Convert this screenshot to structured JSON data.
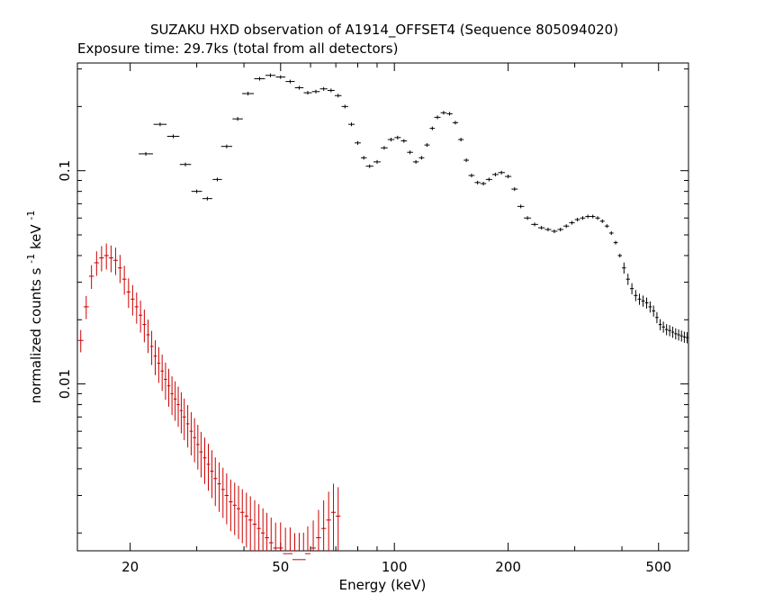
{
  "chart_data": {
    "type": "scatter",
    "title": "SUZAKU HXD observation of A1914_OFFSET4 (Sequence 805094020)",
    "subtitle": "Exposure time: 29.7ks (total from all detectors)",
    "xlabel": "Energy (keV)",
    "ylabel_main": "normalized counts s",
    "ylabel_sup1": "-1",
    "ylabel_mid": " keV",
    "ylabel_sup2": "-1",
    "xscale": "log",
    "yscale": "log",
    "xlim": [
      14.5,
      600
    ],
    "ylim": [
      0.00165,
      0.32
    ],
    "x_ticks": [
      {
        "value": 20,
        "label": "20"
      },
      {
        "value": 50,
        "label": "50"
      },
      {
        "value": 100,
        "label": "100"
      },
      {
        "value": 200,
        "label": "200"
      },
      {
        "value": 500,
        "label": "500"
      }
    ],
    "y_ticks": [
      {
        "value": 0.01,
        "label": "0.01"
      },
      {
        "value": 0.1,
        "label": "0.1"
      }
    ],
    "series": [
      {
        "color": "#000000",
        "points": [
          [
            22.0,
            0.12
          ],
          [
            24.0,
            0.165
          ],
          [
            26.0,
            0.145
          ],
          [
            28.0,
            0.107
          ],
          [
            30.0,
            0.08
          ],
          [
            32.0,
            0.074
          ],
          [
            34.0,
            0.091
          ],
          [
            36.0,
            0.13
          ],
          [
            38.5,
            0.175
          ],
          [
            41.0,
            0.23
          ],
          [
            44.0,
            0.27
          ],
          [
            47.0,
            0.28
          ],
          [
            50.0,
            0.275
          ],
          [
            53.0,
            0.262
          ],
          [
            56.0,
            0.245
          ],
          [
            59.0,
            0.232
          ],
          [
            62.0,
            0.235
          ],
          [
            65.0,
            0.242
          ],
          [
            68.0,
            0.238
          ],
          [
            71.0,
            0.225
          ],
          [
            74.0,
            0.2
          ],
          [
            77.0,
            0.165
          ],
          [
            80.0,
            0.135
          ],
          [
            83.0,
            0.115
          ],
          [
            86.0,
            0.105
          ],
          [
            90.0,
            0.11
          ],
          [
            94.0,
            0.128
          ],
          [
            98.0,
            0.14
          ],
          [
            102.0,
            0.143
          ],
          [
            106.0,
            0.138
          ],
          [
            110.0,
            0.122
          ],
          [
            114.0,
            0.11
          ],
          [
            118.0,
            0.115
          ],
          [
            122.0,
            0.132
          ],
          [
            126.0,
            0.158
          ],
          [
            130.0,
            0.178
          ],
          [
            135.0,
            0.187
          ],
          [
            140.0,
            0.185
          ],
          [
            145.0,
            0.168
          ],
          [
            150.0,
            0.14
          ],
          [
            155.0,
            0.112
          ],
          [
            160.0,
            0.095
          ],
          [
            166.0,
            0.088
          ],
          [
            172.0,
            0.087
          ],
          [
            178.0,
            0.091
          ],
          [
            185.0,
            0.096
          ],
          [
            192.0,
            0.098
          ],
          [
            200.0,
            0.094
          ],
          [
            208.0,
            0.082
          ],
          [
            216.0,
            0.068
          ],
          [
            225.0,
            0.06
          ],
          [
            235.0,
            0.056
          ],
          [
            245.0,
            0.054
          ],
          [
            255.0,
            0.053
          ],
          [
            265.0,
            0.052
          ],
          [
            275.0,
            0.053
          ],
          [
            285.0,
            0.055
          ],
          [
            295.0,
            0.057
          ],
          [
            305.0,
            0.059
          ],
          [
            315.0,
            0.06
          ],
          [
            325.0,
            0.061
          ],
          [
            335.0,
            0.061
          ],
          [
            345.0,
            0.06
          ],
          [
            355.0,
            0.058
          ],
          [
            365.0,
            0.055
          ],
          [
            375.0,
            0.051
          ],
          [
            385.0,
            0.046
          ],
          [
            395.0,
            0.04
          ],
          [
            405.0,
            0.035
          ],
          [
            415.0,
            0.031
          ],
          [
            425.0,
            0.028
          ],
          [
            435.0,
            0.026
          ],
          [
            445.0,
            0.025
          ],
          [
            455.0,
            0.0245
          ],
          [
            465.0,
            0.024
          ],
          [
            475.0,
            0.023
          ],
          [
            485.0,
            0.022
          ],
          [
            495.0,
            0.0205
          ],
          [
            505.0,
            0.019
          ],
          [
            515.0,
            0.0185
          ],
          [
            525.0,
            0.018
          ],
          [
            535.0,
            0.0178
          ],
          [
            545.0,
            0.0175
          ],
          [
            555.0,
            0.0172
          ],
          [
            565.0,
            0.017
          ],
          [
            575.0,
            0.0168
          ],
          [
            585.0,
            0.0166
          ],
          [
            595.0,
            0.0165
          ]
        ]
      },
      {
        "color": "#cc0000",
        "points": [
          [
            14.8,
            0.016
          ],
          [
            15.3,
            0.023
          ],
          [
            15.8,
            0.032
          ],
          [
            16.3,
            0.037
          ],
          [
            16.8,
            0.039
          ],
          [
            17.3,
            0.04
          ],
          [
            17.8,
            0.039
          ],
          [
            18.3,
            0.038
          ],
          [
            18.8,
            0.035
          ],
          [
            19.3,
            0.031
          ],
          [
            19.8,
            0.027
          ],
          [
            20.3,
            0.025
          ],
          [
            20.8,
            0.023
          ],
          [
            21.3,
            0.021
          ],
          [
            21.8,
            0.019
          ],
          [
            22.3,
            0.017
          ],
          [
            22.8,
            0.015
          ],
          [
            23.3,
            0.0135
          ],
          [
            23.8,
            0.0125
          ],
          [
            24.3,
            0.0115
          ],
          [
            24.8,
            0.0105
          ],
          [
            25.3,
            0.0098
          ],
          [
            25.8,
            0.009
          ],
          [
            26.3,
            0.0085
          ],
          [
            26.8,
            0.008
          ],
          [
            27.3,
            0.0075
          ],
          [
            27.8,
            0.007
          ],
          [
            28.4,
            0.0065
          ],
          [
            29.0,
            0.006
          ],
          [
            29.6,
            0.0056
          ],
          [
            30.2,
            0.0052
          ],
          [
            30.8,
            0.0048
          ],
          [
            31.5,
            0.0045
          ],
          [
            32.2,
            0.0042
          ],
          [
            32.9,
            0.0039
          ],
          [
            33.6,
            0.0036
          ],
          [
            34.4,
            0.0034
          ],
          [
            35.2,
            0.0032
          ],
          [
            36.0,
            0.003
          ],
          [
            36.9,
            0.0028
          ],
          [
            37.8,
            0.0027
          ],
          [
            38.7,
            0.0026
          ],
          [
            39.6,
            0.0025
          ],
          [
            40.6,
            0.0024
          ],
          [
            41.6,
            0.0023
          ],
          [
            42.7,
            0.0022
          ],
          [
            43.8,
            0.0021
          ],
          [
            44.9,
            0.002
          ],
          [
            46.0,
            0.0019
          ],
          [
            47.2,
            0.0018
          ],
          [
            48.5,
            0.0017
          ],
          [
            50.0,
            0.0017
          ],
          [
            51.5,
            0.0016
          ],
          [
            53.0,
            0.0016
          ],
          [
            54.5,
            0.0015
          ],
          [
            56.0,
            0.0015
          ],
          [
            57.5,
            0.0015
          ],
          [
            59.0,
            0.0016
          ],
          [
            61.0,
            0.0017
          ],
          [
            63.0,
            0.0019
          ],
          [
            65.0,
            0.0021
          ],
          [
            67.0,
            0.0023
          ],
          [
            69.0,
            0.0025
          ],
          [
            71.0,
            0.0024
          ]
        ]
      }
    ]
  }
}
